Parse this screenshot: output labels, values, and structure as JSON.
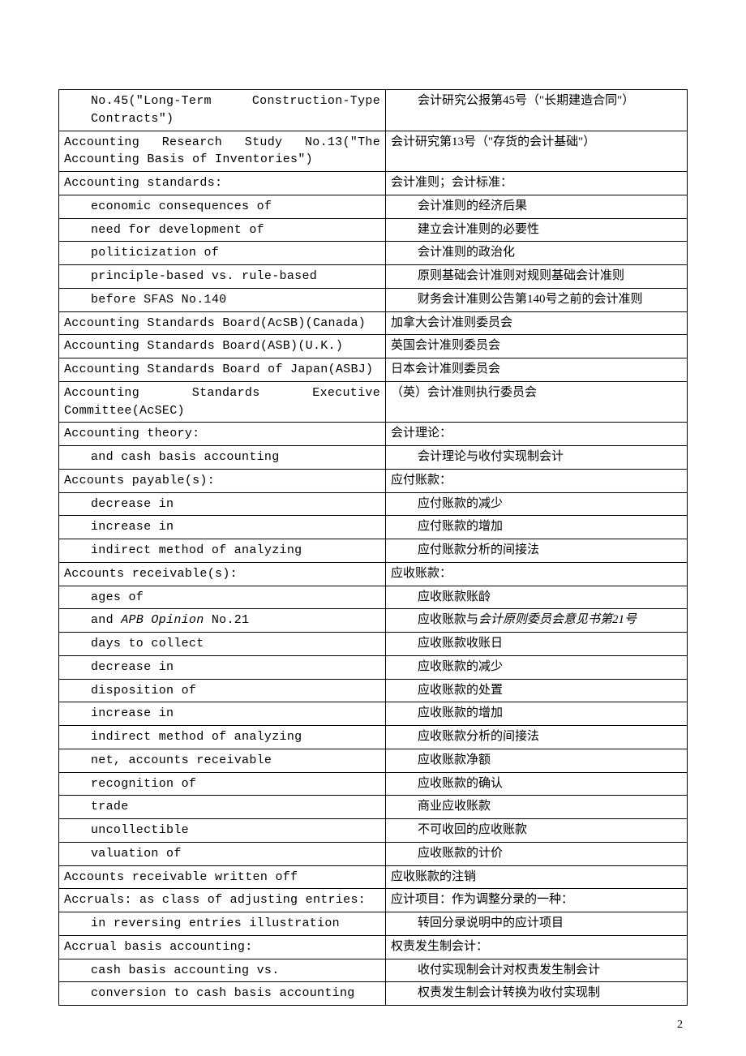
{
  "page_number": "2",
  "table": {
    "col_en_width_pct": 52,
    "col_zh_width_pct": 48,
    "rows": [
      {
        "en_pre": "No.45(\"Long-Term",
        "en_post": "Construction-Type",
        "en_line2": "Contracts\")",
        "zh": "会计研究公报第45号（\"长期建造合同\"）",
        "indent_en": 1,
        "indent_zh": 1,
        "spread": true
      },
      {
        "en_pre": "Accounting",
        "en_mid": "Research",
        "en_mid2": "Study",
        "en_post": "No.13(\"The",
        "en_line2": "Accounting Basis of Inventories\")",
        "zh": "会计研究第13号（\"存货的会计基础\"）",
        "indent_en": 0,
        "indent_zh": 0,
        "spread": true
      },
      {
        "en": "Accounting standards:",
        "zh": "会计准则；会计标准：",
        "indent_en": 0,
        "indent_zh": 0
      },
      {
        "en": "economic consequences of",
        "zh": "会计准则的经济后果",
        "indent_en": 1,
        "indent_zh": 1
      },
      {
        "en": "need for development of",
        "zh": "建立会计准则的必要性",
        "indent_en": 1,
        "indent_zh": 1
      },
      {
        "en": "politicization of",
        "zh": "会计准则的政治化",
        "indent_en": 1,
        "indent_zh": 1
      },
      {
        "en": "principle-based vs. rule-based",
        "zh": "原则基础会计准则对规则基础会计准则",
        "indent_en": 1,
        "indent_zh": 1
      },
      {
        "en": "before SFAS No.140",
        "zh": "财务会计准则公告第140号之前的会计准则",
        "indent_en": 1,
        "indent_zh": 1
      },
      {
        "en": "Accounting Standards Board(AcSB)(Canada)",
        "zh": "加拿大会计准则委员会",
        "indent_en": 0,
        "indent_zh": 0
      },
      {
        "en": "Accounting Standards Board(ASB)(U.K.)",
        "zh": "英国会计准则委员会",
        "indent_en": 0,
        "indent_zh": 0
      },
      {
        "en": "Accounting Standards Board of Japan(ASBJ)",
        "zh": "日本会计准则委员会",
        "indent_en": 0,
        "indent_zh": 0
      },
      {
        "en_pre": "Accounting",
        "en_mid": "Standards",
        "en_post": "Executive",
        "en_line2": "Committee(AcSEC)",
        "zh": "（英）会计准则执行委员会",
        "indent_en": 0,
        "indent_zh": 0,
        "spread": true
      },
      {
        "en": "Accounting theory:",
        "zh": "会计理论：",
        "indent_en": 0,
        "indent_zh": 0
      },
      {
        "en": "and cash basis accounting",
        "zh": "会计理论与收付实现制会计",
        "indent_en": 1,
        "indent_zh": 1
      },
      {
        "en": "Accounts payable(s):",
        "zh": "应付账款：",
        "indent_en": 0,
        "indent_zh": 0
      },
      {
        "en": "decrease in",
        "zh": "应付账款的减少",
        "indent_en": 1,
        "indent_zh": 1
      },
      {
        "en": "increase in",
        "zh": "应付账款的增加",
        "indent_en": 1,
        "indent_zh": 1
      },
      {
        "en": "indirect method of analyzing",
        "zh": "应付账款分析的间接法",
        "indent_en": 1,
        "indent_zh": 1
      },
      {
        "en": "Accounts receivable(s):",
        "zh": "应收账款：",
        "indent_en": 0,
        "indent_zh": 0
      },
      {
        "en": "ages of",
        "zh": "应收账款账龄",
        "indent_en": 1,
        "indent_zh": 1
      },
      {
        "en_html": "and <span class=\"italic\">APB Opinion</span> No.21",
        "zh_html": "应收账款与<span class=\"italic\">会计原则委员会意见书第21号</span>",
        "indent_en": 1,
        "indent_zh": 1
      },
      {
        "en": "days to collect",
        "zh": "应收账款收账日",
        "indent_en": 1,
        "indent_zh": 1
      },
      {
        "en": "decrease in",
        "zh": "应收账款的减少",
        "indent_en": 1,
        "indent_zh": 1
      },
      {
        "en": "disposition of",
        "zh": "应收账款的处置",
        "indent_en": 1,
        "indent_zh": 1
      },
      {
        "en": "increase in",
        "zh": "应收账款的增加",
        "indent_en": 1,
        "indent_zh": 1
      },
      {
        "en": "indirect method of analyzing",
        "zh": "应收账款分析的间接法",
        "indent_en": 1,
        "indent_zh": 1
      },
      {
        "en": "net, accounts receivable",
        "zh": "应收账款净额",
        "indent_en": 1,
        "indent_zh": 1
      },
      {
        "en": "recognition of",
        "zh": "应收账款的确认",
        "indent_en": 1,
        "indent_zh": 1
      },
      {
        "en": "trade",
        "zh": "商业应收账款",
        "indent_en": 1,
        "indent_zh": 1
      },
      {
        "en": "uncollectible",
        "zh": "不可收回的应收账款",
        "indent_en": 1,
        "indent_zh": 1
      },
      {
        "en": "valuation of",
        "zh": "应收账款的计价",
        "indent_en": 1,
        "indent_zh": 1
      },
      {
        "en": "Accounts receivable written off",
        "zh": "应收账款的注销",
        "indent_en": 0,
        "indent_zh": 0
      },
      {
        "en": "Accruals: as class of adjusting entries:",
        "zh": "应计项目：作为调整分录的一种：",
        "indent_en": 0,
        "indent_zh": 0
      },
      {
        "en": "in reversing entries illustration",
        "zh": "转回分录说明中的应计项目",
        "indent_en": 1,
        "indent_zh": 1
      },
      {
        "en": "Accrual basis accounting:",
        "zh": "权责发生制会计：",
        "indent_en": 0,
        "indent_zh": 0
      },
      {
        "en": "cash basis accounting vs.",
        "zh": "收付实现制会计对权责发生制会计",
        "indent_en": 1,
        "indent_zh": 1
      },
      {
        "en": "conversion to cash basis accounting",
        "zh": "权责发生制会计转换为收付实现制",
        "indent_en": 1,
        "indent_zh": 1
      }
    ]
  }
}
